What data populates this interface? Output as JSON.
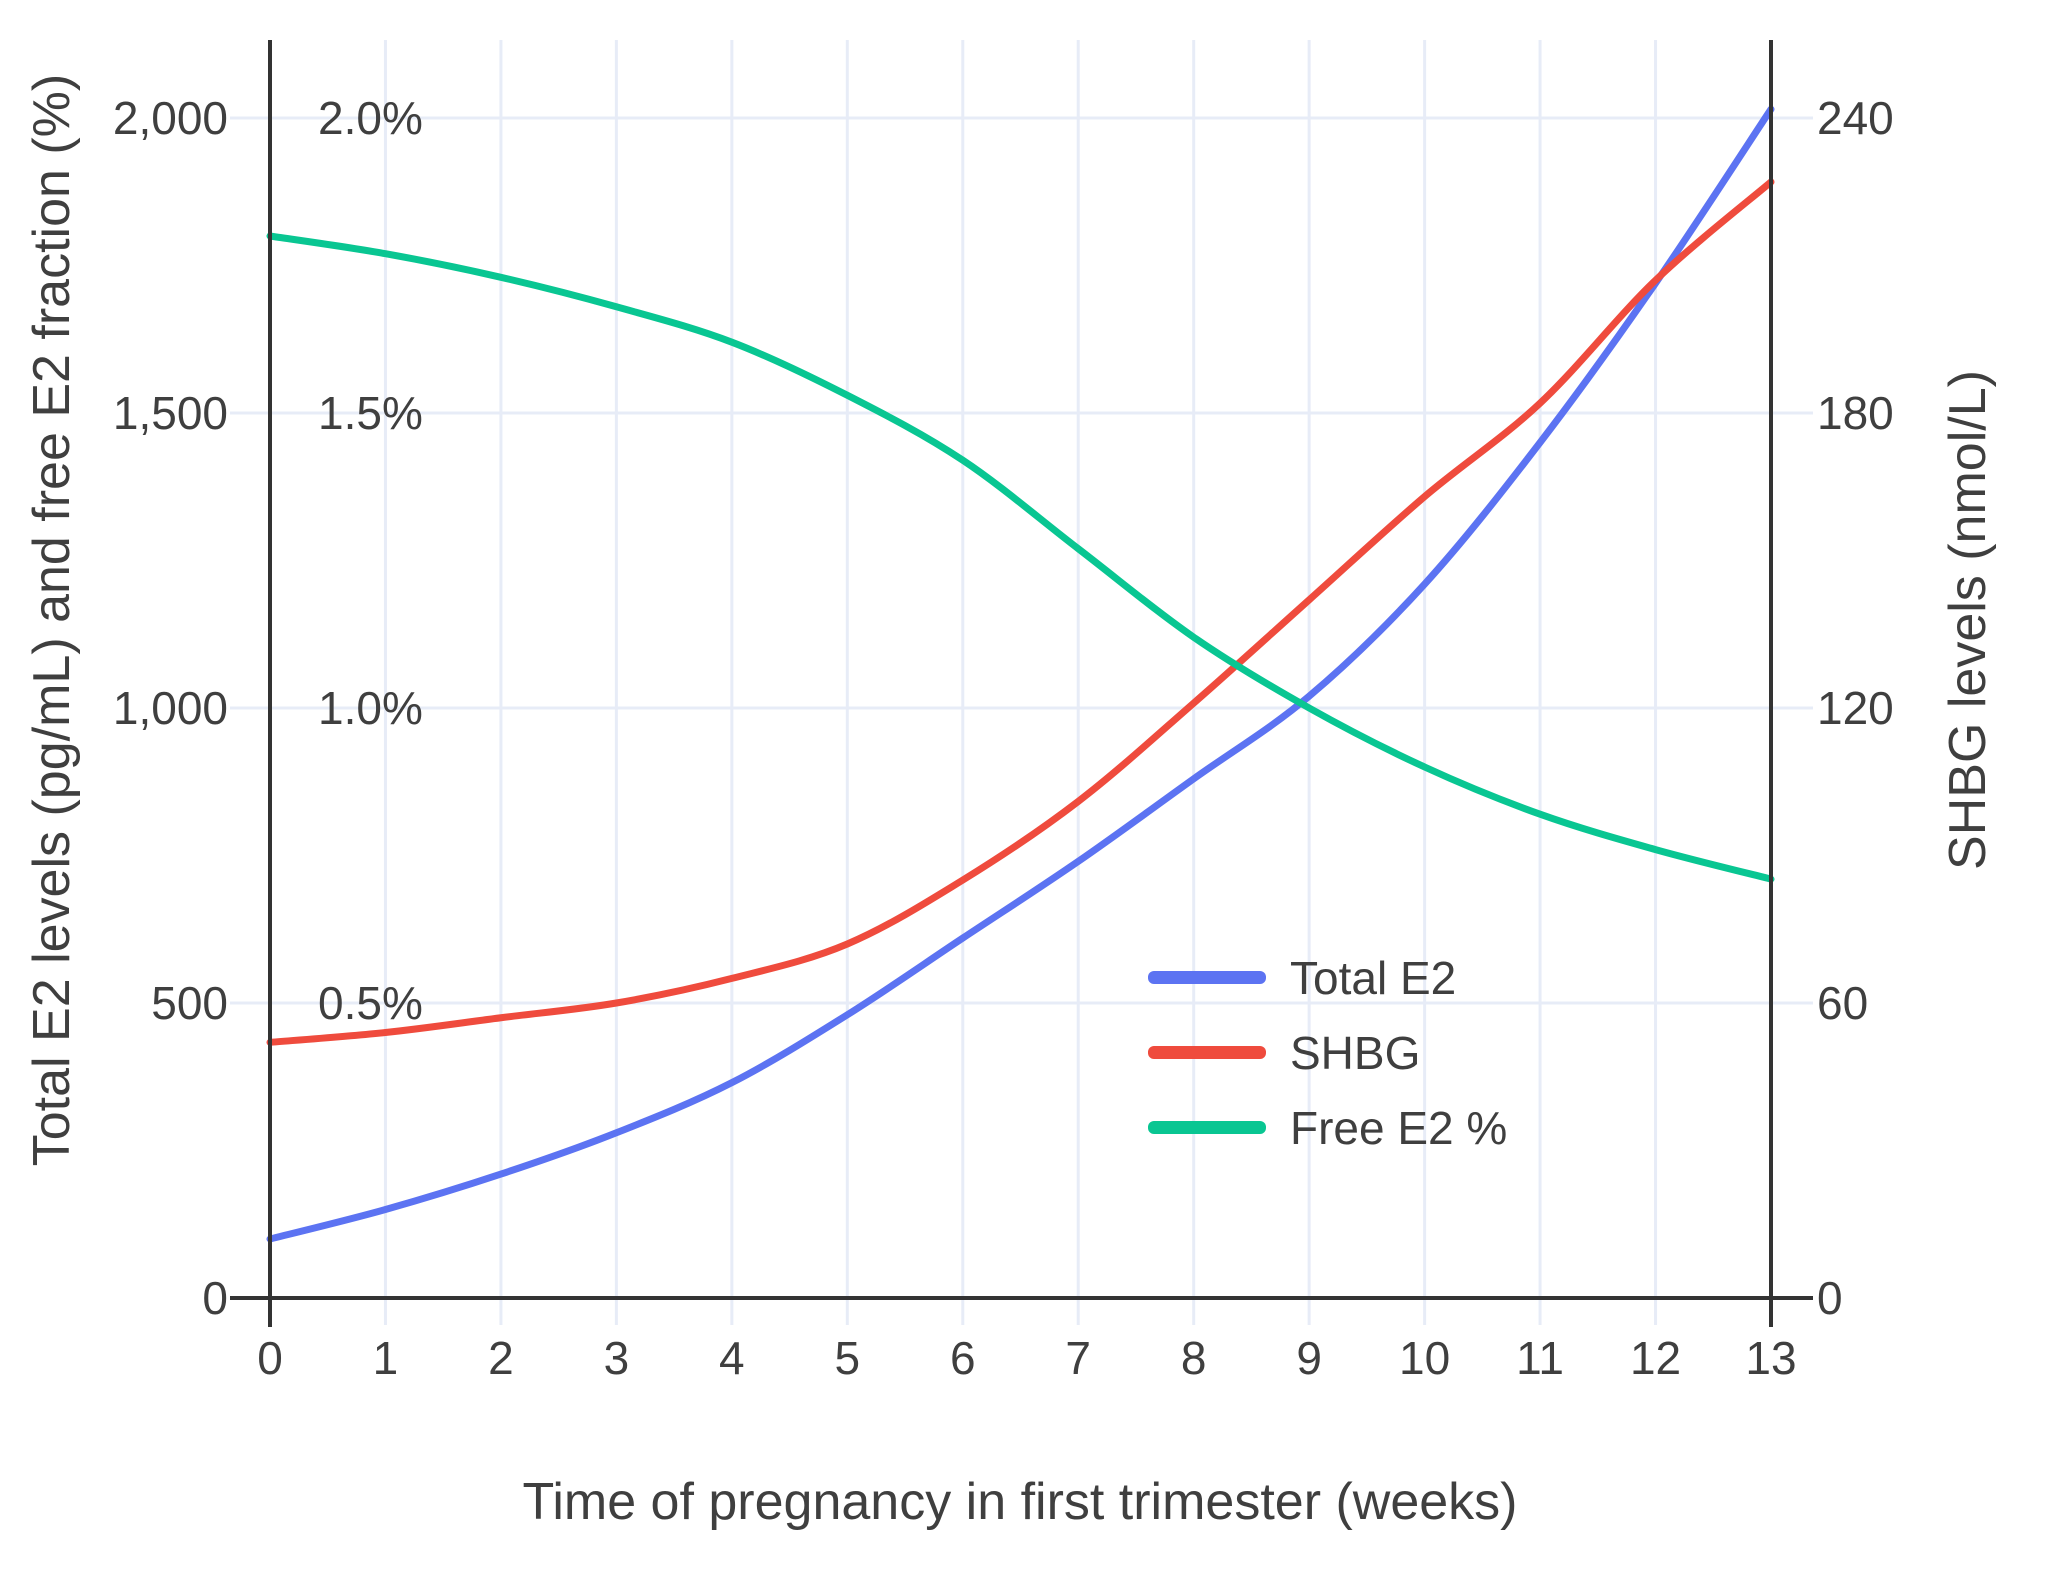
{
  "chart": {
    "x_axis": {
      "title": "Time of pregnancy in first trimester (weeks)",
      "ticks": [
        {
          "label": "0",
          "value": 0
        },
        {
          "label": "1",
          "value": 1
        },
        {
          "label": "2",
          "value": 2
        },
        {
          "label": "3",
          "value": 3
        },
        {
          "label": "4",
          "value": 4
        },
        {
          "label": "5",
          "value": 5
        },
        {
          "label": "6",
          "value": 6
        },
        {
          "label": "7",
          "value": 7
        },
        {
          "label": "8",
          "value": 8
        },
        {
          "label": "9",
          "value": 9
        },
        {
          "label": "10",
          "value": 10
        },
        {
          "label": "11",
          "value": 11
        },
        {
          "label": "12",
          "value": 12
        },
        {
          "label": "13",
          "value": 13
        }
      ]
    },
    "y_left": {
      "title": "Total E2 levels (pg/mL) and free E2 fraction (%)",
      "ticks": [
        {
          "label": "0",
          "value": 0
        },
        {
          "label": "500",
          "value": 500
        },
        {
          "label": "1,000",
          "value": 1000
        },
        {
          "label": "1,500",
          "value": 1500
        },
        {
          "label": "2,000",
          "value": 2000
        }
      ],
      "inner_percent_labels": [
        {
          "label": "0.5%",
          "value_pct": 0.5
        },
        {
          "label": "1.0%",
          "value_pct": 1.0
        },
        {
          "label": "1.5%",
          "value_pct": 1.5
        },
        {
          "label": "2.0%",
          "value_pct": 2.0
        }
      ]
    },
    "y_right": {
      "title": "SHBG levels (nmol/L)",
      "ticks": [
        {
          "label": "0",
          "value": 0
        },
        {
          "label": "60",
          "value": 60
        },
        {
          "label": "120",
          "value": 120
        },
        {
          "label": "180",
          "value": 180
        },
        {
          "label": "240",
          "value": 240
        }
      ]
    },
    "legend": [
      {
        "label": "Total E2",
        "color": "#5c73f2"
      },
      {
        "label": "SHBG",
        "color": "#ef4b3d"
      },
      {
        "label": "Free E2 %",
        "color": "#09c692"
      }
    ]
  },
  "chart_data": {
    "type": "line",
    "x": [
      0,
      1,
      2,
      3,
      4,
      5,
      6,
      7,
      8,
      9,
      10,
      11,
      12,
      13
    ],
    "series": [
      {
        "name": "Total E2",
        "axis": "left",
        "unit": "pg/mL",
        "color": "#5c73f2",
        "values": [
          100,
          150,
          210,
          280,
          365,
          480,
          610,
          740,
          880,
          1020,
          1210,
          1450,
          1720,
          2015
        ]
      },
      {
        "name": "SHBG",
        "axis": "right",
        "unit": "nmol/L",
        "color": "#ef4b3d",
        "values": [
          52,
          54,
          57,
          60,
          65,
          72,
          85,
          101,
          121,
          142,
          163,
          182,
          207,
          227
        ]
      },
      {
        "name": "Free E2 %",
        "axis": "left_pct",
        "unit": "%",
        "color": "#09c692",
        "values": [
          1.8,
          1.77,
          1.73,
          1.68,
          1.62,
          1.53,
          1.42,
          1.27,
          1.12,
          1.0,
          0.9,
          0.82,
          0.76,
          0.71
        ]
      }
    ],
    "axes": {
      "x_range": [
        0,
        13
      ],
      "left_range": [
        0,
        2000
      ],
      "left_pct_range": [
        0,
        2.0
      ],
      "right_range": [
        0,
        240
      ]
    },
    "grid": true,
    "legend_position": "inside-right-middle",
    "title": "",
    "xlabel": "Time of pregnancy in first trimester (weeks)",
    "ylabel_left": "Total E2 levels (pg/mL) and free E2 fraction (%)",
    "ylabel_right": "SHBG levels (nmol/L)"
  },
  "colors": {
    "grid": "#e7ecf7",
    "axis_line": "#333333",
    "text": "#3f3f3f",
    "background": "#ffffff"
  }
}
